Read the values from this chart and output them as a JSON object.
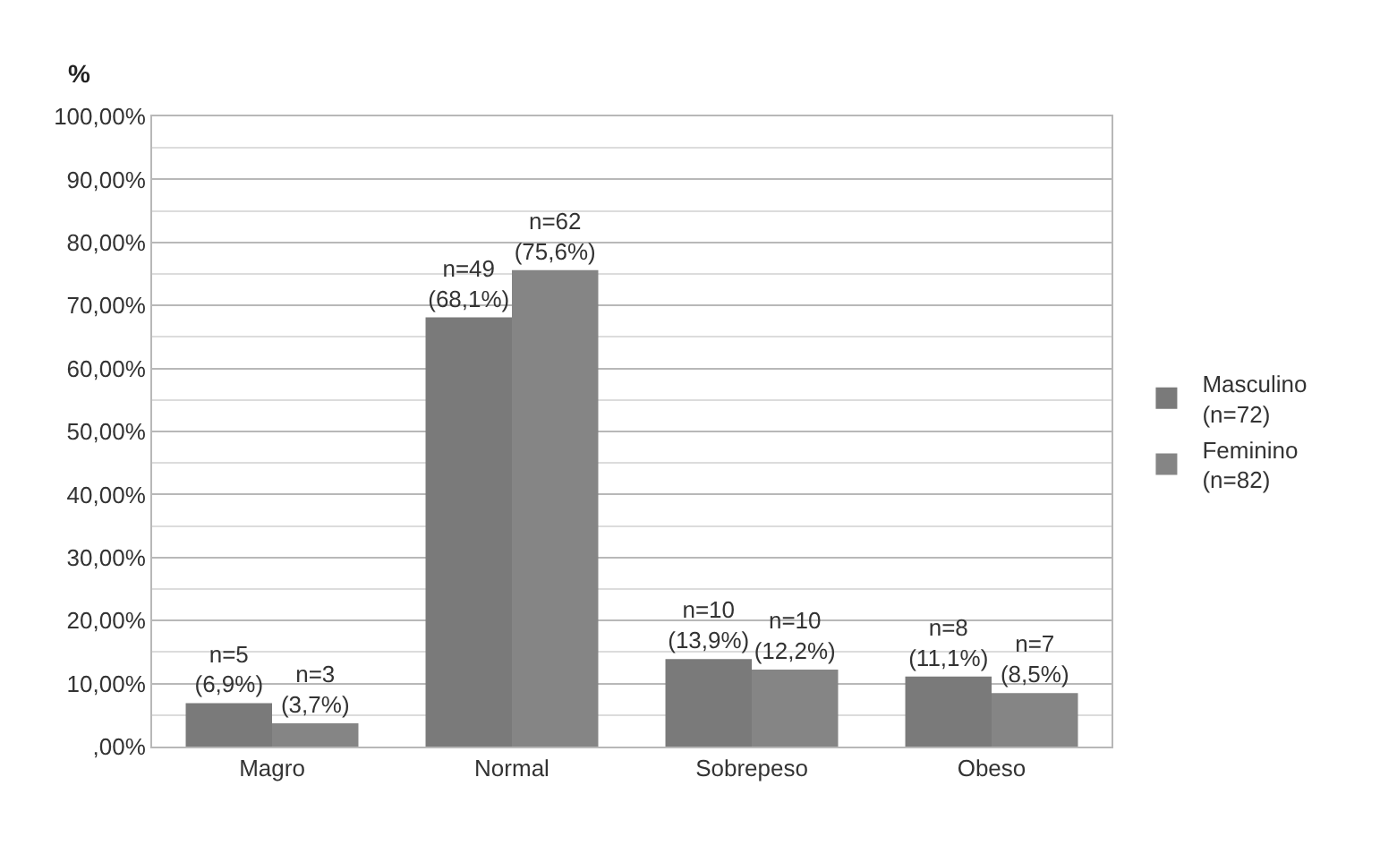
{
  "chart_data": {
    "type": "bar",
    "ylabel": "%",
    "categories": [
      "Magro",
      "Normal",
      "Sobrepeso",
      "Obeso"
    ],
    "series": [
      {
        "name": "Masculino\n(n=72)",
        "color": "#7a7a7a",
        "values": [
          6.9,
          68.1,
          13.9,
          11.1
        ],
        "value_labels": [
          "n=5\n(6,9%)",
          "n=49\n(68,1%)",
          "n=10\n(13,9%)",
          "n=8\n(11,1%)"
        ]
      },
      {
        "name": "Feminino\n(n=82)",
        "color": "#858585",
        "values": [
          3.7,
          75.6,
          12.2,
          8.5
        ],
        "value_labels": [
          "n=3\n(3,7%)",
          "n=62\n(75,6%)",
          "n=10\n(12,2%)",
          "n=7\n(8,5%)"
        ]
      }
    ],
    "ylim": [
      0,
      100
    ],
    "yticks": [
      {
        "value": 0,
        "label": ",00%"
      },
      {
        "value": 10,
        "label": "10,00%"
      },
      {
        "value": 20,
        "label": "20,00%"
      },
      {
        "value": 30,
        "label": "30,00%"
      },
      {
        "value": 40,
        "label": "40,00%"
      },
      {
        "value": 50,
        "label": "50,00%"
      },
      {
        "value": 60,
        "label": "60,00%"
      },
      {
        "value": 70,
        "label": "70,00%"
      },
      {
        "value": 80,
        "label": "80,00%"
      },
      {
        "value": 90,
        "label": "90,00%"
      },
      {
        "value": 100,
        "label": "100,00%"
      }
    ],
    "grid": true,
    "legend": "right"
  }
}
